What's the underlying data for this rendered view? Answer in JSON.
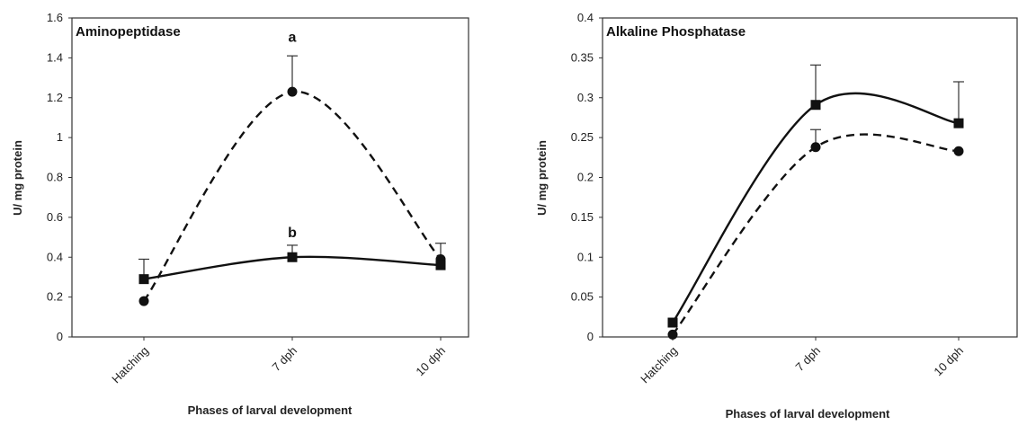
{
  "chart_data": [
    {
      "type": "line",
      "title": "Aminopeptidase",
      "xlabel": "Phases of larval development",
      "ylabel": "U/ mg protein",
      "categories": [
        "Hatching",
        "7 dph",
        "10 dph"
      ],
      "ylim": [
        0,
        1.6
      ],
      "yticks": [
        "0",
        "0.2",
        "0.4",
        "0.6",
        "0.8",
        "1",
        "1.2",
        "1.4",
        "1.6"
      ],
      "grid": false,
      "series": [
        {
          "line": "dashed",
          "marker": "circle",
          "values": [
            0.18,
            1.23,
            0.39
          ],
          "errors": [
            0,
            0.18,
            0.08
          ]
        },
        {
          "line": "solid",
          "marker": "square",
          "values": [
            0.29,
            0.4,
            0.36
          ],
          "errors": [
            0.1,
            0.06,
            0
          ]
        }
      ],
      "annotations": [
        {
          "text": "a",
          "category": "7 dph",
          "y": 1.48
        },
        {
          "text": "b",
          "category": "7 dph",
          "y": 0.5
        }
      ]
    },
    {
      "type": "line",
      "title": "Alkaline Phosphatase",
      "xlabel": "Phases of larval development",
      "ylabel": "U/ mg protein",
      "categories": [
        "Hatching",
        "7 dph",
        "10 dph"
      ],
      "ylim": [
        0,
        0.4
      ],
      "yticks": [
        "0",
        "0.05",
        "0.1",
        "0.15",
        "0.2",
        "0.25",
        "0.3",
        "0.35",
        "0.4"
      ],
      "grid": false,
      "series": [
        {
          "line": "dashed",
          "marker": "circle",
          "values": [
            0.003,
            0.238,
            0.233
          ],
          "errors": [
            0,
            0.022,
            0
          ]
        },
        {
          "line": "solid",
          "marker": "square",
          "values": [
            0.018,
            0.291,
            0.268
          ],
          "errors": [
            0,
            0.05,
            0.052
          ]
        }
      ],
      "annotations": []
    }
  ]
}
